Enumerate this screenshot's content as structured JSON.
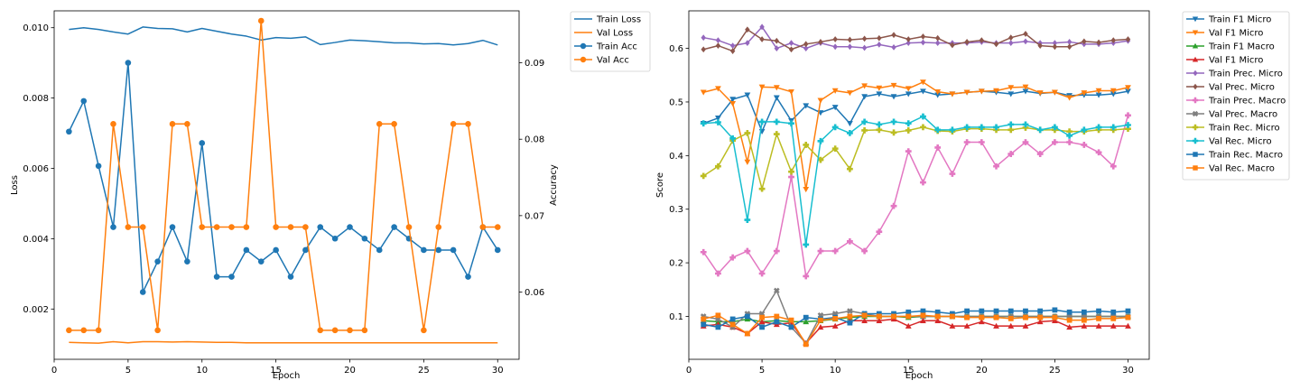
{
  "chart_data": [
    {
      "type": "line",
      "xlabel": "Epoch",
      "ylabel": "Loss",
      "y2label": "Accuracy",
      "x": [
        1,
        2,
        3,
        4,
        5,
        6,
        7,
        8,
        9,
        10,
        11,
        12,
        13,
        14,
        15,
        16,
        17,
        18,
        19,
        20,
        21,
        22,
        23,
        24,
        25,
        26,
        27,
        28,
        29,
        30
      ],
      "xlim": [
        0.0,
        31.45
      ],
      "ylim": [
        0.00057,
        0.01048
      ],
      "y2lim": [
        0.0512,
        0.0968
      ],
      "xticks": [
        0,
        5,
        10,
        15,
        20,
        25,
        30
      ],
      "yticks": [
        0.002,
        0.004,
        0.006,
        0.008,
        0.01
      ],
      "ytick_labels": [
        "0.002",
        "0.004",
        "0.006",
        "0.008",
        "0.010"
      ],
      "y2ticks": [
        0.06,
        0.07,
        0.08,
        0.09
      ],
      "y2tick_labels": [
        "0.06",
        "0.07",
        "0.08",
        "0.09"
      ],
      "grid": false,
      "legend_position": "outside-right",
      "series": [
        {
          "name": "Train Loss",
          "axis": "left",
          "color": "#1f77b4",
          "marker": "none",
          "values": [
            0.00995,
            0.01,
            0.00995,
            0.00988,
            0.00982,
            0.01002,
            0.00998,
            0.00997,
            0.00988,
            0.00998,
            0.0099,
            0.00982,
            0.00976,
            0.00965,
            0.00972,
            0.0097,
            0.00974,
            0.00952,
            0.00958,
            0.00965,
            0.00963,
            0.0096,
            0.00957,
            0.00957,
            0.00954,
            0.00955,
            0.00951,
            0.00955,
            0.00964,
            0.00951
          ]
        },
        {
          "name": "Val Loss",
          "axis": "left",
          "color": "#ff7f0e",
          "marker": "none",
          "values": [
            0.00105,
            0.00104,
            0.00103,
            0.00107,
            0.00104,
            0.00107,
            0.00107,
            0.00106,
            0.00107,
            0.00106,
            0.00105,
            0.00105,
            0.00104,
            0.00104,
            0.00104,
            0.00104,
            0.00104,
            0.00104,
            0.00104,
            0.00104,
            0.00104,
            0.00104,
            0.00104,
            0.00104,
            0.00104,
            0.00104,
            0.00104,
            0.00104,
            0.00104,
            0.00104
          ]
        },
        {
          "name": "Train Acc",
          "axis": "right",
          "color": "#1f77b4",
          "marker": "circle",
          "values": [
            0.081,
            0.085,
            0.0765,
            0.0685,
            0.09,
            0.06,
            0.064,
            0.0685,
            0.064,
            0.0795,
            0.062,
            0.062,
            0.0655,
            0.064,
            0.0655,
            0.062,
            0.0655,
            0.0685,
            0.067,
            0.0685,
            0.067,
            0.0655,
            0.0685,
            0.067,
            0.0655,
            0.0655,
            0.0655,
            0.062,
            0.0685,
            0.0655
          ]
        },
        {
          "name": "Val Acc",
          "axis": "right",
          "color": "#ff7f0e",
          "marker": "circle",
          "values": [
            0.055,
            0.055,
            0.055,
            0.082,
            0.0685,
            0.0685,
            0.055,
            0.082,
            0.082,
            0.0685,
            0.0685,
            0.0685,
            0.0685,
            0.0955,
            0.0685,
            0.0685,
            0.0685,
            0.055,
            0.055,
            0.055,
            0.055,
            0.082,
            0.082,
            0.0685,
            0.055,
            0.0685,
            0.082,
            0.082,
            0.0685,
            0.0685
          ]
        }
      ]
    },
    {
      "type": "line",
      "xlabel": "Epoch",
      "ylabel": "Score",
      "x": [
        1,
        2,
        3,
        4,
        5,
        6,
        7,
        8,
        9,
        10,
        11,
        12,
        13,
        14,
        15,
        16,
        17,
        18,
        19,
        20,
        21,
        22,
        23,
        24,
        25,
        26,
        27,
        28,
        29,
        30
      ],
      "xlim": [
        0.0,
        31.45
      ],
      "ylim": [
        0.02,
        0.67
      ],
      "xticks": [
        0,
        5,
        10,
        15,
        20,
        25,
        30
      ],
      "yticks": [
        0.1,
        0.2,
        0.3,
        0.4,
        0.5,
        0.6
      ],
      "ytick_labels": [
        "0.1",
        "0.2",
        "0.3",
        "0.4",
        "0.5",
        "0.6"
      ],
      "grid": false,
      "legend_position": "outside-right",
      "series": [
        {
          "name": "Train F1 Micro",
          "color": "#1f77b4",
          "marker": "triangle-down",
          "values": [
            0.46,
            0.47,
            0.505,
            0.513,
            0.445,
            0.508,
            0.465,
            0.493,
            0.48,
            0.49,
            0.46,
            0.51,
            0.515,
            0.51,
            0.515,
            0.52,
            0.513,
            0.515,
            0.518,
            0.52,
            0.518,
            0.515,
            0.52,
            0.516,
            0.518,
            0.512,
            0.513,
            0.513,
            0.515,
            0.52
          ]
        },
        {
          "name": "Val F1 Micro",
          "color": "#ff7f0e",
          "marker": "triangle-down",
          "values": [
            0.518,
            0.525,
            0.497,
            0.388,
            0.528,
            0.527,
            0.519,
            0.337,
            0.503,
            0.521,
            0.517,
            0.53,
            0.526,
            0.531,
            0.525,
            0.537,
            0.519,
            0.515,
            0.518,
            0.52,
            0.521,
            0.527,
            0.528,
            0.517,
            0.518,
            0.508,
            0.517,
            0.521,
            0.521,
            0.527
          ]
        },
        {
          "name": "Train F1 Macro",
          "color": "#2ca02c",
          "marker": "triangle-up",
          "values": [
            0.092,
            0.09,
            0.09,
            0.095,
            0.09,
            0.092,
            0.09,
            0.09,
            0.092,
            0.095,
            0.098,
            0.1,
            0.1,
            0.1,
            0.098,
            0.1,
            0.1,
            0.1,
            0.1,
            0.1,
            0.1,
            0.1,
            0.1,
            0.1,
            0.1,
            0.1,
            0.1,
            0.1,
            0.1,
            0.1
          ]
        },
        {
          "name": "Val F1 Micro",
          "color": "#d62728",
          "marker": "triangle-up",
          "values": [
            0.082,
            0.085,
            0.08,
            0.068,
            0.09,
            0.085,
            0.088,
            0.05,
            0.08,
            0.082,
            0.092,
            0.092,
            0.092,
            0.095,
            0.082,
            0.092,
            0.092,
            0.082,
            0.082,
            0.09,
            0.082,
            0.082,
            0.082,
            0.09,
            0.092,
            0.08,
            0.082,
            0.082,
            0.082,
            0.082
          ]
        },
        {
          "name": "Train Prec. Micro",
          "color": "#9467bd",
          "marker": "diamond",
          "values": [
            0.62,
            0.615,
            0.605,
            0.61,
            0.64,
            0.6,
            0.61,
            0.6,
            0.61,
            0.603,
            0.603,
            0.601,
            0.607,
            0.602,
            0.61,
            0.611,
            0.61,
            0.61,
            0.61,
            0.612,
            0.61,
            0.61,
            0.613,
            0.61,
            0.61,
            0.612,
            0.608,
            0.608,
            0.61,
            0.614
          ]
        },
        {
          "name": "Val Prec. Micro",
          "color": "#8c564b",
          "marker": "diamond",
          "values": [
            0.598,
            0.605,
            0.595,
            0.635,
            0.617,
            0.614,
            0.598,
            0.608,
            0.612,
            0.617,
            0.616,
            0.618,
            0.619,
            0.625,
            0.617,
            0.622,
            0.619,
            0.606,
            0.612,
            0.615,
            0.608,
            0.62,
            0.627,
            0.605,
            0.603,
            0.603,
            0.613,
            0.611,
            0.615,
            0.617
          ]
        },
        {
          "name": "Train Prec. Macro",
          "color": "#e377c2",
          "marker": "plus-filled",
          "values": [
            0.22,
            0.18,
            0.21,
            0.222,
            0.18,
            0.222,
            0.36,
            0.175,
            0.222,
            0.222,
            0.24,
            0.222,
            0.258,
            0.306,
            0.408,
            0.35,
            0.415,
            0.366,
            0.425,
            0.425,
            0.38,
            0.403,
            0.425,
            0.403,
            0.425,
            0.425,
            0.42,
            0.406,
            0.38,
            0.475
          ]
        },
        {
          "name": "Val Prec. Macro",
          "color": "#7f7f7f",
          "marker": "x-filled",
          "values": [
            0.1,
            0.095,
            0.08,
            0.105,
            0.105,
            0.148,
            0.08,
            0.05,
            0.102,
            0.105,
            0.11,
            0.105,
            0.1,
            0.1,
            0.1,
            0.1,
            0.1,
            0.1,
            0.1,
            0.1,
            0.1,
            0.1,
            0.1,
            0.1,
            0.1,
            0.1,
            0.1,
            0.1,
            0.1,
            0.1
          ]
        },
        {
          "name": "Train Rec. Micro",
          "color": "#bcbd22",
          "marker": "plus-filled",
          "values": [
            0.362,
            0.38,
            0.428,
            0.442,
            0.338,
            0.44,
            0.37,
            0.42,
            0.392,
            0.413,
            0.375,
            0.447,
            0.448,
            0.443,
            0.447,
            0.453,
            0.446,
            0.445,
            0.45,
            0.45,
            0.448,
            0.448,
            0.452,
            0.448,
            0.448,
            0.445,
            0.445,
            0.448,
            0.448,
            0.45
          ]
        },
        {
          "name": "Val Rec. Micro",
          "color": "#17becf",
          "marker": "plus-filled",
          "values": [
            0.46,
            0.462,
            0.432,
            0.28,
            0.463,
            0.463,
            0.46,
            0.234,
            0.427,
            0.453,
            0.442,
            0.463,
            0.458,
            0.463,
            0.46,
            0.473,
            0.448,
            0.448,
            0.453,
            0.453,
            0.453,
            0.458,
            0.458,
            0.448,
            0.453,
            0.437,
            0.448,
            0.453,
            0.453,
            0.457
          ]
        },
        {
          "name": "Train Rec. Macro",
          "color": "#1f77b4",
          "marker": "square",
          "values": [
            0.085,
            0.08,
            0.095,
            0.1,
            0.08,
            0.09,
            0.08,
            0.098,
            0.095,
            0.098,
            0.088,
            0.105,
            0.105,
            0.105,
            0.108,
            0.11,
            0.108,
            0.105,
            0.11,
            0.11,
            0.11,
            0.11,
            0.11,
            0.11,
            0.112,
            0.108,
            0.108,
            0.11,
            0.108,
            0.11
          ]
        },
        {
          "name": "Val Rec. Macro",
          "color": "#ff7f0e",
          "marker": "square",
          "values": [
            0.095,
            0.102,
            0.085,
            0.068,
            0.098,
            0.1,
            0.093,
            0.048,
            0.093,
            0.096,
            0.1,
            0.102,
            0.1,
            0.1,
            0.1,
            0.102,
            0.1,
            0.1,
            0.098,
            0.098,
            0.098,
            0.096,
            0.098,
            0.098,
            0.098,
            0.093,
            0.093,
            0.096,
            0.096,
            0.098
          ]
        }
      ]
    }
  ]
}
